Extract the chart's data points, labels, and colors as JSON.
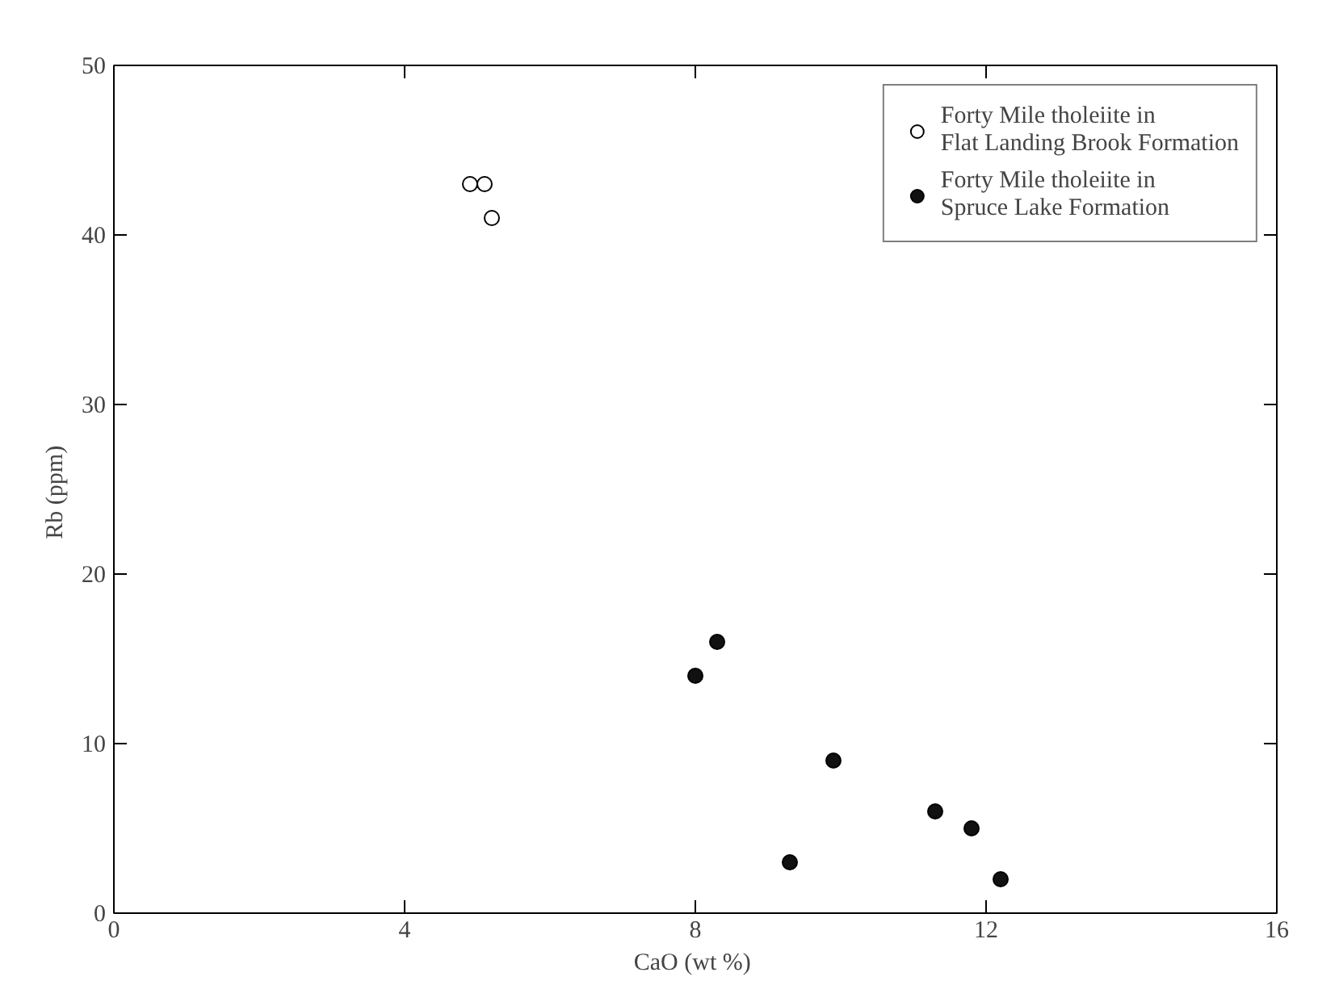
{
  "chart_data": {
    "type": "scatter",
    "xlabel": "CaO  (wt %)",
    "ylabel": "Rb  (ppm)",
    "xlim": [
      0,
      16
    ],
    "ylim": [
      0,
      50
    ],
    "xticks": [
      0,
      4,
      8,
      12,
      16
    ],
    "yticks": [
      0,
      10,
      20,
      30,
      40,
      50
    ],
    "grid": false,
    "legend": "top right",
    "marker": "circle",
    "series": [
      {
        "name": "Forty Mile tholeiite in\nFlat Landing Brook Formation",
        "color": "#ffffff",
        "x": [
          4.9,
          5.1,
          5.2
        ],
        "values": [
          43,
          43,
          41
        ]
      },
      {
        "name": "Forty Mile tholeiite in\nSpruce Lake Formation",
        "color": "#111111",
        "x": [
          8.0,
          8.3,
          9.3,
          9.9,
          11.3,
          11.8,
          12.2
        ],
        "values": [
          14,
          16,
          3,
          9,
          6,
          5,
          2
        ]
      }
    ]
  }
}
